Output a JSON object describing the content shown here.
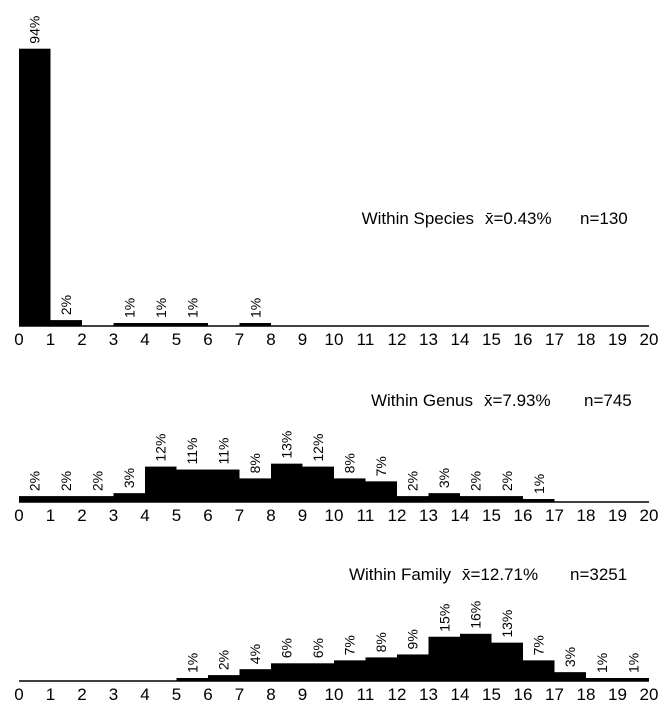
{
  "chart_data": [
    {
      "type": "bar",
      "title": "Within Species",
      "mean_label": "x̄=0.43%",
      "n_label": "n=130",
      "x_ticks": [
        "0",
        "1",
        "2",
        "3",
        "4",
        "5",
        "6",
        "7",
        "8",
        "9",
        "10",
        "11",
        "12",
        "13",
        "14",
        "15",
        "16",
        "17",
        "18",
        "19",
        "20"
      ],
      "bins": [
        {
          "start": 0,
          "end": 1,
          "value": 94,
          "label": "94%"
        },
        {
          "start": 1,
          "end": 2,
          "value": 2,
          "label": "2%"
        },
        {
          "start": 3,
          "end": 4,
          "value": 1,
          "label": "1%"
        },
        {
          "start": 4,
          "end": 5,
          "value": 1,
          "label": "1%"
        },
        {
          "start": 5,
          "end": 6,
          "value": 1,
          "label": "1%"
        },
        {
          "start": 7,
          "end": 8,
          "value": 1,
          "label": "1%"
        }
      ],
      "xlim": [
        0,
        20
      ],
      "ylim": [
        0,
        94
      ]
    },
    {
      "type": "bar",
      "title": "Within Genus",
      "mean_label": "x̄=7.93%",
      "n_label": "n=745",
      "x_ticks": [
        "0",
        "1",
        "2",
        "3",
        "4",
        "5",
        "6",
        "7",
        "8",
        "9",
        "10",
        "11",
        "12",
        "13",
        "14",
        "15",
        "16",
        "17",
        "18",
        "19",
        "20"
      ],
      "bins": [
        {
          "start": 0,
          "end": 1,
          "value": 2,
          "label": "2%"
        },
        {
          "start": 1,
          "end": 2,
          "value": 2,
          "label": "2%"
        },
        {
          "start": 2,
          "end": 3,
          "value": 2,
          "label": "2%"
        },
        {
          "start": 3,
          "end": 4,
          "value": 3,
          "label": "3%"
        },
        {
          "start": 4,
          "end": 5,
          "value": 12,
          "label": "12%"
        },
        {
          "start": 5,
          "end": 6,
          "value": 11,
          "label": "11%"
        },
        {
          "start": 6,
          "end": 7,
          "value": 11,
          "label": "11%"
        },
        {
          "start": 7,
          "end": 8,
          "value": 8,
          "label": "8%"
        },
        {
          "start": 8,
          "end": 9,
          "value": 13,
          "label": "13%"
        },
        {
          "start": 9,
          "end": 10,
          "value": 12,
          "label": "12%"
        },
        {
          "start": 10,
          "end": 11,
          "value": 8,
          "label": "8%"
        },
        {
          "start": 11,
          "end": 12,
          "value": 7,
          "label": "7%"
        },
        {
          "start": 12,
          "end": 13,
          "value": 2,
          "label": "2%"
        },
        {
          "start": 13,
          "end": 14,
          "value": 3,
          "label": "3%"
        },
        {
          "start": 14,
          "end": 15,
          "value": 2,
          "label": "2%"
        },
        {
          "start": 15,
          "end": 16,
          "value": 2,
          "label": "2%"
        },
        {
          "start": 16,
          "end": 17,
          "value": 1,
          "label": "1%"
        }
      ],
      "xlim": [
        0,
        20
      ],
      "ylim": [
        0,
        94
      ]
    },
    {
      "type": "bar",
      "title": "Within Family",
      "mean_label": "x̄=12.71%",
      "n_label": "n=3251",
      "x_ticks": [
        "0",
        "1",
        "2",
        "3",
        "4",
        "5",
        "6",
        "7",
        "8",
        "9",
        "10",
        "11",
        "12",
        "13",
        "14",
        "15",
        "16",
        "17",
        "18",
        "19",
        "20"
      ],
      "bins": [
        {
          "start": 5,
          "end": 6,
          "value": 1,
          "label": "1%"
        },
        {
          "start": 6,
          "end": 7,
          "value": 2,
          "label": "2%"
        },
        {
          "start": 7,
          "end": 8,
          "value": 4,
          "label": "4%"
        },
        {
          "start": 8,
          "end": 9,
          "value": 6,
          "label": "6%"
        },
        {
          "start": 9,
          "end": 10,
          "value": 6,
          "label": "6%"
        },
        {
          "start": 10,
          "end": 11,
          "value": 7,
          "label": "7%"
        },
        {
          "start": 11,
          "end": 12,
          "value": 8,
          "label": "8%"
        },
        {
          "start": 12,
          "end": 13,
          "value": 9,
          "label": "9%"
        },
        {
          "start": 13,
          "end": 14,
          "value": 15,
          "label": "15%"
        },
        {
          "start": 14,
          "end": 15,
          "value": 16,
          "label": "16%"
        },
        {
          "start": 15,
          "end": 16,
          "value": 13,
          "label": "13%"
        },
        {
          "start": 16,
          "end": 17,
          "value": 7,
          "label": "7%"
        },
        {
          "start": 17,
          "end": 18,
          "value": 3,
          "label": "3%"
        },
        {
          "start": 18,
          "end": 19,
          "value": 1,
          "label": "1%"
        },
        {
          "start": 19,
          "end": 20,
          "value": 1,
          "label": "1%"
        }
      ],
      "xlim": [
        0,
        20
      ],
      "ylim": [
        0,
        94
      ]
    }
  ]
}
